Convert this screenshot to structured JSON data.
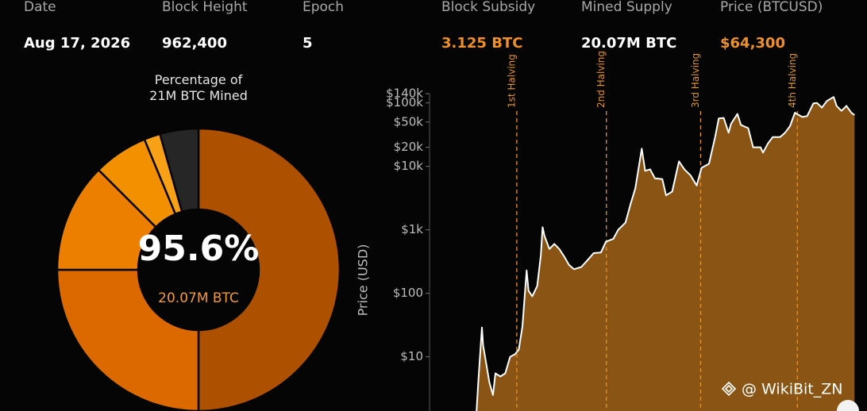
{
  "header": {
    "fields": [
      {
        "label": "Date",
        "value": "Aug 17, 2026",
        "color": "#ffffff"
      },
      {
        "label": "Block Height",
        "value": "962,400",
        "color": "#ffffff"
      },
      {
        "label": "Epoch",
        "value": "5",
        "color": "#ffffff"
      },
      {
        "label": "Block Subsidy",
        "value": "3.125 BTC",
        "color": "#f0902a"
      },
      {
        "label": "Mined Supply",
        "value": "20.07M BTC",
        "color": "#ffffff"
      },
      {
        "label": "Price (BTCUSD)",
        "value": "$64,300",
        "color": "#f0902a"
      }
    ]
  },
  "chart_data": [
    {
      "type": "donut",
      "title": "Percentage of 21M BTC Mined",
      "center_label": "95.6%",
      "center_sublabel": "20.07M BTC",
      "categories": [
        null,
        null,
        null,
        null,
        null,
        null
      ],
      "values": [
        50,
        25,
        12.5,
        6.25,
        1.85,
        4.4
      ],
      "colors": [
        "#ad5000",
        "#dc6900",
        "#ec7e00",
        "#f39000",
        "#f9a116",
        "#262626"
      ]
    },
    {
      "type": "area",
      "y_label": "Price (USD)",
      "log_y": true,
      "color": "#8a5514",
      "line_color": "#ffffff",
      "xlim": [
        2009.93,
        2026.75
      ],
      "ylim": [
        1.4,
        140000
      ],
      "yticks": [
        {
          "value": 10,
          "label": "$10"
        },
        {
          "value": 100,
          "label": "$100"
        },
        {
          "value": 1000,
          "label": "$1k"
        },
        {
          "value": 10000,
          "label": "$10k"
        },
        {
          "value": 20000,
          "label": "$20k"
        },
        {
          "value": 50000,
          "label": "$50k"
        },
        {
          "value": 100000,
          "label": "$100k"
        },
        {
          "value": 140000,
          "label": "$140k"
        }
      ],
      "annotations": [
        {
          "x": 2012.87,
          "label": "1st Halving"
        },
        {
          "x": 2016.52,
          "label": "2nd Halving"
        },
        {
          "x": 2020.36,
          "label": "3rd Halving"
        },
        {
          "x": 2024.3,
          "label": "4th Halving"
        }
      ],
      "annotation_color": "#e0922e",
      "x": [
        2011.2,
        2011.3,
        2011.45,
        2011.5,
        2011.6,
        2011.75,
        2011.9,
        2012.0,
        2012.2,
        2012.4,
        2012.6,
        2012.8,
        2012.95,
        2013.1,
        2013.27,
        2013.35,
        2013.5,
        2013.7,
        2013.85,
        2013.92,
        2014.0,
        2014.2,
        2014.4,
        2014.6,
        2014.8,
        2015.0,
        2015.2,
        2015.5,
        2015.8,
        2016.0,
        2016.3,
        2016.5,
        2016.8,
        2017.0,
        2017.3,
        2017.5,
        2017.7,
        2017.96,
        2018.1,
        2018.3,
        2018.5,
        2018.8,
        2018.95,
        2019.2,
        2019.48,
        2019.7,
        2019.95,
        2020.2,
        2020.4,
        2020.7,
        2020.95,
        2021.1,
        2021.3,
        2021.5,
        2021.6,
        2021.86,
        2022.0,
        2022.3,
        2022.5,
        2022.8,
        2022.9,
        2023.1,
        2023.3,
        2023.6,
        2023.8,
        2024.0,
        2024.2,
        2024.5,
        2024.7,
        2024.95,
        2025.1,
        2025.3,
        2025.5,
        2025.78,
        2025.9,
        2026.1,
        2026.3,
        2026.5,
        2026.63
      ],
      "values": [
        0.9,
        4,
        29,
        15,
        9,
        4,
        2.5,
        5.5,
        4.9,
        5.5,
        10,
        11,
        13,
        30,
        230,
        110,
        90,
        130,
        400,
        1100,
        800,
        500,
        600,
        500,
        380,
        280,
        240,
        260,
        350,
        430,
        440,
        650,
        720,
        1000,
        1300,
        2500,
        4500,
        19000,
        8500,
        9000,
        6500,
        6300,
        3500,
        4000,
        12000,
        9000,
        7200,
        5000,
        9500,
        11000,
        29000,
        57000,
        58000,
        34000,
        47000,
        67000,
        45000,
        40000,
        20000,
        20000,
        16500,
        23000,
        29000,
        29000,
        34000,
        43000,
        70000,
        60000,
        62000,
        98000,
        100000,
        84000,
        107000,
        124000,
        90000,
        75000,
        90000,
        70000,
        64300
      ]
    }
  ],
  "watermark": "@ WikiBit_ZN"
}
